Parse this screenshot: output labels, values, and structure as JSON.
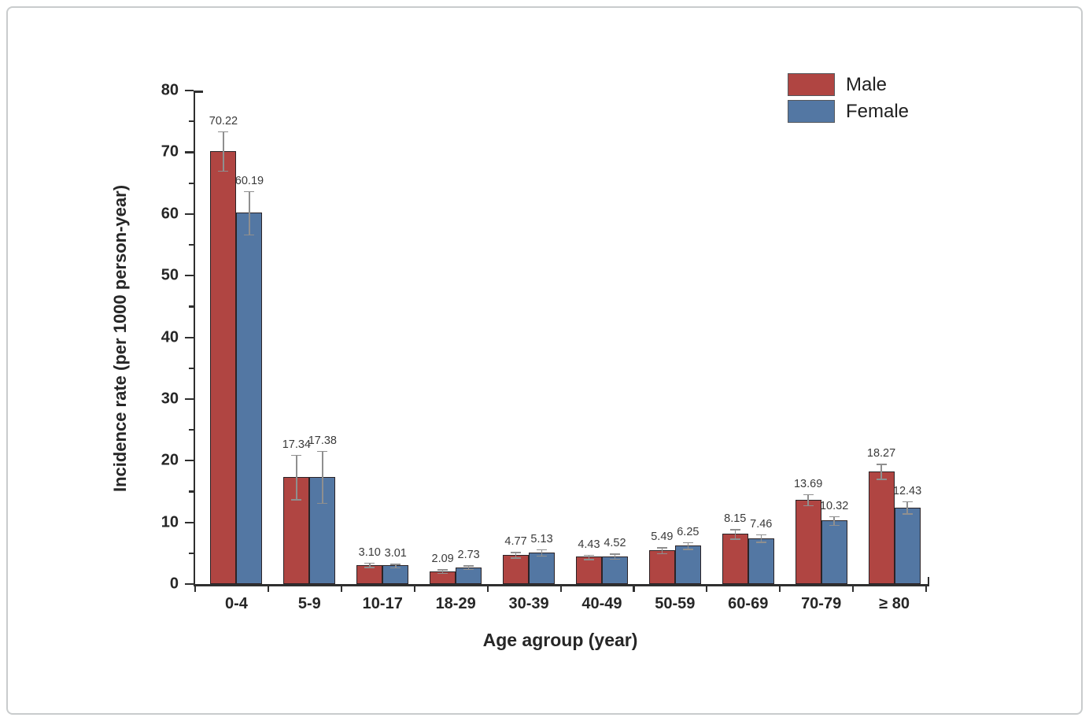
{
  "page": {
    "background_color": "#ffffff",
    "frame_border_color": "#c9cccd"
  },
  "chart_data": {
    "type": "bar",
    "title": "",
    "xlabel": "Age agroup (year)",
    "ylabel": "Incidence rate (per 1000 person-year)",
    "categories": [
      "0-4",
      "5-9",
      "10-17",
      "18-29",
      "30-39",
      "40-49",
      "50-59",
      "60-69",
      "70-79",
      "≥ 80"
    ],
    "series": [
      {
        "name": "Male",
        "color": "#b04542",
        "values": [
          70.22,
          17.34,
          3.1,
          2.09,
          4.77,
          4.43,
          5.49,
          8.15,
          13.69,
          18.27
        ],
        "errors": [
          3.2,
          3.6,
          0.35,
          0.3,
          0.45,
          0.35,
          0.5,
          0.75,
          0.9,
          1.2
        ]
      },
      {
        "name": "Female",
        "color": "#5377a3",
        "values": [
          60.19,
          17.38,
          3.01,
          2.73,
          5.13,
          4.52,
          6.25,
          7.46,
          10.32,
          12.43
        ],
        "errors": [
          3.5,
          4.2,
          0.3,
          0.3,
          0.5,
          0.4,
          0.55,
          0.6,
          0.7,
          1.0
        ]
      }
    ],
    "ylim": [
      0,
      80
    ],
    "ytick_step": 10,
    "yminor_step": 5,
    "grid": false,
    "legend_position": "top-right",
    "error_bar_color": "#8f8f8f",
    "bar_border_color": "#2b2326",
    "axis_color": "#2f2f2f",
    "label_format_decimals": 2
  }
}
